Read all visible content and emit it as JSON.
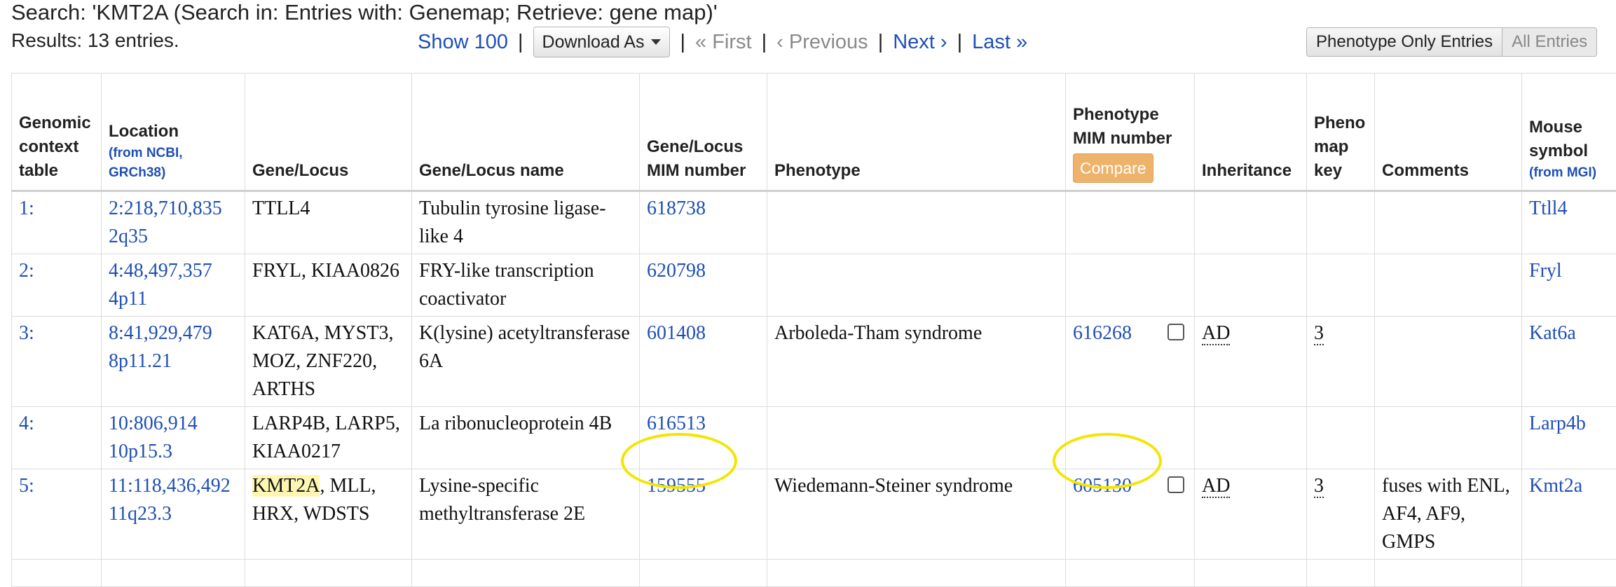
{
  "search_text": "Search: 'KMT2A (Search in: Entries with: Genemap; Retrieve: gene map)'",
  "results_text": "Results: 13 entries.",
  "pager": {
    "show100": "Show 100",
    "download_label": "Download As",
    "first": "« First",
    "previous": "‹ Previous",
    "next": "Next ›",
    "last": "Last »",
    "sep": "|"
  },
  "toggle": {
    "phenotype_only": "Phenotype Only Entries",
    "all": "All Entries"
  },
  "headers": {
    "genomic_context": "Genomic context table",
    "location": "Location",
    "location_sub": "(from NCBI, GRCh38)",
    "gene_locus": "Gene/Locus",
    "gene_locus_name": "Gene/Locus name",
    "gene_mim": "Gene/Locus MIM  number",
    "phenotype": "Phenotype",
    "pheno_mim": "Phenotype MIM  number",
    "compare": "Compare",
    "inheritance": "Inheritance",
    "pheno_map_key": "Pheno map key",
    "comments": "Comments",
    "mouse_symbol": "Mouse symbol",
    "mouse_sub": "(from MGI)"
  },
  "rows": [
    {
      "idx": "1:",
      "loc1": "2:218,710,835",
      "loc2": "2q35",
      "gene_pre": "",
      "gene_hl": "",
      "gene": "TTLL4",
      "name": "Tubulin tyrosine ligase-like 4",
      "gene_mim": "618738",
      "phenotype": "",
      "pheno_mim": "",
      "inheritance": "",
      "map_key": "",
      "comments": "",
      "mouse": "Ttll4"
    },
    {
      "idx": "2:",
      "loc1": "4:48,497,357",
      "loc2": "4p11",
      "gene_pre": "",
      "gene_hl": "",
      "gene": "FRYL, KIAA0826",
      "name": "FRY-like transcription coactivator",
      "gene_mim": "620798",
      "phenotype": "",
      "pheno_mim": "",
      "inheritance": "",
      "map_key": "",
      "comments": "",
      "mouse": "Fryl"
    },
    {
      "idx": "3:",
      "loc1": "8:41,929,479",
      "loc2": "8p11.21",
      "gene_pre": "",
      "gene_hl": "",
      "gene": "KAT6A, MYST3, MOZ, ZNF220, ARTHS",
      "name": "K(lysine) acetyltransferase 6A",
      "gene_mim": "601408",
      "phenotype": "Arboleda-Tham syndrome",
      "pheno_mim": "616268",
      "inheritance": "AD",
      "map_key": "3",
      "comments": "",
      "mouse": "Kat6a"
    },
    {
      "idx": "4:",
      "loc1": "10:806,914",
      "loc2": "10p15.3",
      "gene_pre": "",
      "gene_hl": "",
      "gene": "LARP4B, LARP5, KIAA0217",
      "name": "La ribonucleoprotein 4B",
      "gene_mim": "616513",
      "phenotype": "",
      "pheno_mim": "",
      "inheritance": "",
      "map_key": "",
      "comments": "",
      "mouse": "Larp4b"
    },
    {
      "idx": "5:",
      "loc1": "11:118,436,492",
      "loc2": "11q23.3",
      "gene_pre": "",
      "gene_hl": "KMT2A",
      "gene": ", MLL, HRX, WDSTS",
      "name": "Lysine-specific methyltransferase 2E",
      "gene_mim": "159555",
      "phenotype": "Wiedemann-Steiner syndrome",
      "pheno_mim": "605130",
      "inheritance": "AD",
      "map_key": "3",
      "comments": "fuses with ENL, AF4, AF9, GMPS",
      "mouse": "Kmt2a"
    }
  ],
  "highlight_color": "#f2e600",
  "link_color": "#1f4fb4",
  "compare_color": "#eeb36b"
}
